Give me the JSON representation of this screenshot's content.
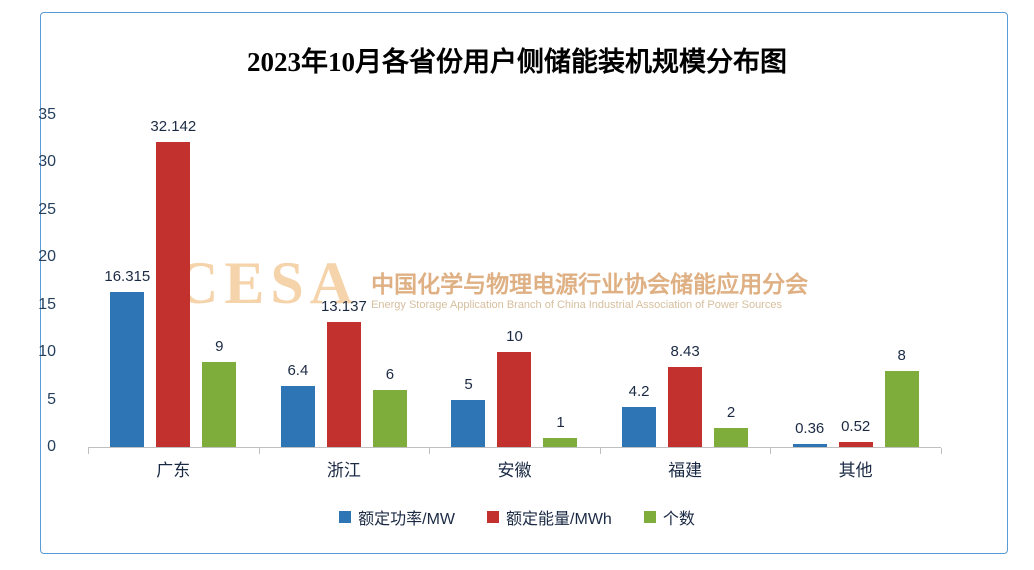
{
  "chart_data": {
    "type": "bar",
    "title": "2023年10月各省份用户侧储能装机规模分布图",
    "categories": [
      "广东",
      "浙江",
      "安徽",
      "福建",
      "其他"
    ],
    "series": [
      {
        "name": "额定功率/MW",
        "color": "#2E75B6",
        "values": [
          16.315,
          6.4,
          5,
          4.2,
          0.36
        ],
        "labels": [
          "16.315",
          "6.4",
          "5",
          "4.2",
          "0.36"
        ]
      },
      {
        "name": "额定能量/MWh",
        "color": "#C2312D",
        "values": [
          32.142,
          13.137,
          10,
          8.43,
          0.52
        ],
        "labels": [
          "32.142",
          "13.137",
          "10",
          "8.43",
          "0.52"
        ]
      },
      {
        "name": "个数",
        "color": "#7EAD3C",
        "values": [
          9,
          6,
          1,
          2,
          8
        ],
        "labels": [
          "9",
          "6",
          "1",
          "2",
          "8"
        ]
      }
    ],
    "ylim": [
      0,
      35
    ],
    "ytick_step": 5,
    "grid": false,
    "legend_position": "bottom"
  },
  "watermark": {
    "logo": "CESA",
    "line1": "中国化学与物理电源行业协会储能应用分会",
    "line2": "Energy Storage Application Branch of China Industrial Association of Power Sources"
  }
}
